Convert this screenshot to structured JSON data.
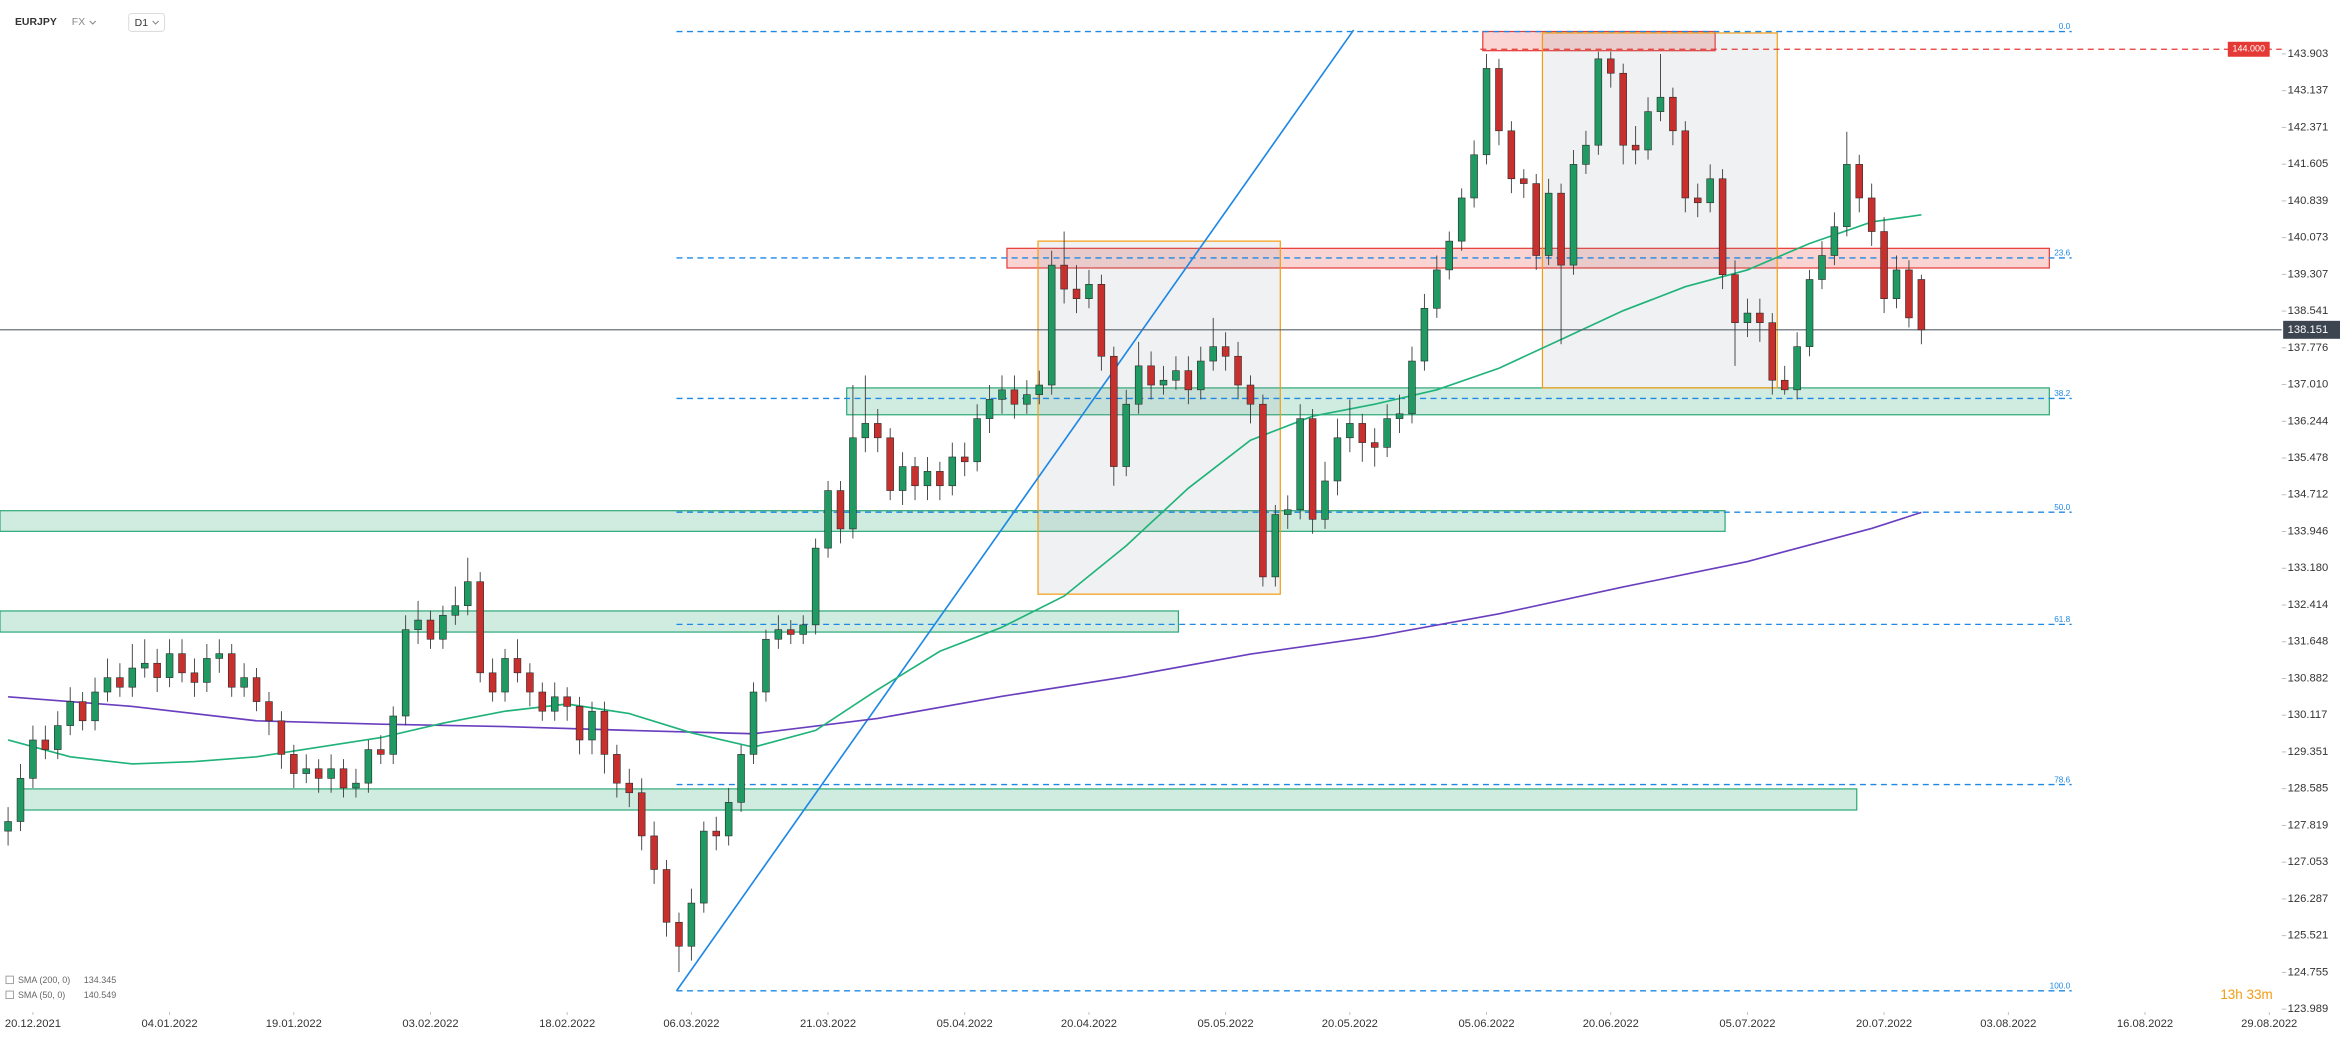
{
  "chart_data": {
    "type": "candlestick",
    "symbol": "EURJPY",
    "market": "FX",
    "timeframe": "D1",
    "x": [
      -2,
      -1,
      0,
      1,
      2,
      3,
      4,
      5,
      6,
      7,
      8,
      9,
      10,
      11,
      12,
      13,
      14,
      15,
      16,
      17,
      18,
      19,
      20,
      21,
      22,
      23,
      24,
      25,
      26,
      27,
      28,
      29,
      30,
      31,
      32,
      33,
      34,
      35,
      36,
      37,
      38,
      39,
      40,
      41,
      42,
      43,
      44,
      45,
      46,
      47,
      48,
      49,
      50,
      51,
      52,
      53,
      54,
      55,
      56,
      57,
      58,
      59,
      60,
      61,
      62,
      63,
      64,
      65,
      66,
      67,
      68,
      69,
      70,
      71,
      72,
      73,
      74,
      75,
      76,
      77,
      78,
      79,
      80,
      81,
      82,
      83,
      84,
      85,
      86,
      87,
      88,
      89,
      90,
      91,
      92,
      93,
      94,
      95,
      96,
      97,
      98,
      99,
      100,
      101,
      102,
      103,
      104,
      105,
      106,
      107,
      108,
      109,
      110,
      111,
      112,
      113,
      114,
      115,
      116,
      117,
      118,
      119,
      120,
      121,
      122,
      123,
      124,
      125,
      126,
      127,
      128,
      129,
      130,
      131,
      132,
      133,
      134,
      135,
      136,
      137,
      138,
      139,
      140,
      141,
      142,
      143,
      144,
      145,
      146,
      147,
      148,
      149,
      150,
      151,
      152
    ],
    "open": [
      127.7,
      127.9,
      128.8,
      129.6,
      129.4,
      129.9,
      130.4,
      130.0,
      130.6,
      130.9,
      130.7,
      131.1,
      131.2,
      130.9,
      131.4,
      131.0,
      130.8,
      131.3,
      131.4,
      130.7,
      130.9,
      130.4,
      130.0,
      129.3,
      128.9,
      129.0,
      128.8,
      129.0,
      128.6,
      128.7,
      129.4,
      129.3,
      130.1,
      131.9,
      132.1,
      131.7,
      132.2,
      132.4,
      132.9,
      131.0,
      130.6,
      131.3,
      131.0,
      130.6,
      130.2,
      130.5,
      130.3,
      129.6,
      130.2,
      129.3,
      128.7,
      128.5,
      127.6,
      126.9,
      125.8,
      125.3,
      126.2,
      127.7,
      127.6,
      128.3,
      129.3,
      130.6,
      131.7,
      131.9,
      131.8,
      132.0,
      133.6,
      134.8,
      134.0,
      135.9,
      136.2,
      135.9,
      134.8,
      135.3,
      134.9,
      135.2,
      134.9,
      135.5,
      135.4,
      136.3,
      136.7,
      136.9,
      136.6,
      136.8,
      137.0,
      139.5,
      139.0,
      138.8,
      139.1,
      137.6,
      135.3,
      136.6,
      137.4,
      137.0,
      137.1,
      137.3,
      136.9,
      137.5,
      137.8,
      137.6,
      137.0,
      136.6,
      133.0,
      134.3,
      134.4,
      136.3,
      134.2,
      135.0,
      135.9,
      136.2,
      135.8,
      135.7,
      136.3,
      136.4,
      137.5,
      138.6,
      139.4,
      140.0,
      140.9,
      141.8,
      143.6,
      142.3,
      141.3,
      141.2,
      139.7,
      141.0,
      139.5,
      141.6,
      142.0,
      143.8,
      143.5,
      142.0,
      141.9,
      142.7,
      143.0,
      142.3,
      140.9,
      140.8,
      141.3,
      139.3,
      138.3,
      138.5,
      138.3,
      137.1,
      136.9,
      137.8,
      139.2,
      139.7,
      140.3,
      141.6,
      140.9,
      140.2,
      138.8,
      139.4,
      139.2
    ],
    "high": [
      128.2,
      129.1,
      129.9,
      129.9,
      130.2,
      130.7,
      130.6,
      130.9,
      131.3,
      131.2,
      131.6,
      131.7,
      131.5,
      131.7,
      131.7,
      131.3,
      131.6,
      131.7,
      131.6,
      131.2,
      131.1,
      130.6,
      130.2,
      129.5,
      129.3,
      129.2,
      129.3,
      129.2,
      129.0,
      129.6,
      129.7,
      130.3,
      132.2,
      132.5,
      132.3,
      132.4,
      132.8,
      133.4,
      133.1,
      131.3,
      131.5,
      131.7,
      131.2,
      130.8,
      130.8,
      130.7,
      130.5,
      130.4,
      130.4,
      129.5,
      129.0,
      128.8,
      127.9,
      127.1,
      126.0,
      126.5,
      127.9,
      128.0,
      128.6,
      129.5,
      130.8,
      131.9,
      132.2,
      132.1,
      132.2,
      133.8,
      135.0,
      135.0,
      137.0,
      137.2,
      136.5,
      136.1,
      135.6,
      135.5,
      135.5,
      135.4,
      135.8,
      135.8,
      136.6,
      137.0,
      137.2,
      137.2,
      137.1,
      137.3,
      139.8,
      140.2,
      139.5,
      139.4,
      139.3,
      137.8,
      136.9,
      137.9,
      137.7,
      137.4,
      137.6,
      137.6,
      137.8,
      138.4,
      138.1,
      137.9,
      137.2,
      136.8,
      134.5,
      134.7,
      136.6,
      136.5,
      135.4,
      136.3,
      136.7,
      136.4,
      136.1,
      136.6,
      136.8,
      137.8,
      138.9,
      139.7,
      140.2,
      141.1,
      142.1,
      143.9,
      143.8,
      142.5,
      141.5,
      141.4,
      141.3,
      141.2,
      141.9,
      142.3,
      143.95,
      143.95,
      143.7,
      142.4,
      143.0,
      143.9,
      143.2,
      142.5,
      141.2,
      141.6,
      141.5,
      139.6,
      138.8,
      138.8,
      138.5,
      137.4,
      138.1,
      139.4,
      140.0,
      140.6,
      142.28,
      141.8,
      141.2,
      140.5,
      139.7,
      139.6,
      139.3
    ],
    "low": [
      127.4,
      127.7,
      128.6,
      129.2,
      129.2,
      129.7,
      129.8,
      129.8,
      130.4,
      130.5,
      130.5,
      130.9,
      130.6,
      130.7,
      130.8,
      130.5,
      130.6,
      131.0,
      130.5,
      130.5,
      130.2,
      129.7,
      129.0,
      128.6,
      128.7,
      128.5,
      128.5,
      128.4,
      128.4,
      128.5,
      129.1,
      129.1,
      129.9,
      131.6,
      131.5,
      131.5,
      132.0,
      132.2,
      130.8,
      130.4,
      130.4,
      130.8,
      130.3,
      130.0,
      130.0,
      130.0,
      129.3,
      129.3,
      128.9,
      128.4,
      128.2,
      127.3,
      126.6,
      125.5,
      124.76,
      125.0,
      126.0,
      127.3,
      127.4,
      128.1,
      129.1,
      130.4,
      131.5,
      131.6,
      131.6,
      131.8,
      133.4,
      133.7,
      133.8,
      135.6,
      135.6,
      134.6,
      134.5,
      134.6,
      134.6,
      134.6,
      134.7,
      135.1,
      135.2,
      136.0,
      136.4,
      136.3,
      136.4,
      136.6,
      136.8,
      138.7,
      138.5,
      138.6,
      137.3,
      134.9,
      135.1,
      136.4,
      136.7,
      136.8,
      136.9,
      136.6,
      136.7,
      137.3,
      137.3,
      136.7,
      136.2,
      132.8,
      132.8,
      134.0,
      134.2,
      133.9,
      134.0,
      134.7,
      135.6,
      135.4,
      135.3,
      135.5,
      136.0,
      136.2,
      137.3,
      138.4,
      139.2,
      139.8,
      140.7,
      141.6,
      142.0,
      141.0,
      140.9,
      139.4,
      139.5,
      137.85,
      139.3,
      141.4,
      141.8,
      143.2,
      141.6,
      141.6,
      141.7,
      142.5,
      142.0,
      140.6,
      140.5,
      140.6,
      139.0,
      137.4,
      138.0,
      137.9,
      136.8,
      136.8,
      136.7,
      137.6,
      139.0,
      139.5,
      140.1,
      140.6,
      139.9,
      138.5,
      138.6,
      138.2,
      137.85
    ],
    "close": [
      127.9,
      128.8,
      129.6,
      129.4,
      129.9,
      130.4,
      130.0,
      130.6,
      130.9,
      130.7,
      131.1,
      131.2,
      130.9,
      131.4,
      131.0,
      130.8,
      131.3,
      131.4,
      130.7,
      130.9,
      130.4,
      130.0,
      129.3,
      128.9,
      129.0,
      128.8,
      129.0,
      128.6,
      128.7,
      129.4,
      129.3,
      130.1,
      131.9,
      132.1,
      131.7,
      132.2,
      132.4,
      132.9,
      131.0,
      130.6,
      131.3,
      131.0,
      130.6,
      130.2,
      130.5,
      130.3,
      129.6,
      130.2,
      129.3,
      128.7,
      128.5,
      127.6,
      126.9,
      125.8,
      125.3,
      126.2,
      127.7,
      127.6,
      128.3,
      129.3,
      130.6,
      131.7,
      131.9,
      131.8,
      132.0,
      133.6,
      134.8,
      134.0,
      135.9,
      136.2,
      135.9,
      134.8,
      135.3,
      134.9,
      135.2,
      134.9,
      135.5,
      135.4,
      136.3,
      136.7,
      136.9,
      136.6,
      136.8,
      137.0,
      139.5,
      139.0,
      138.8,
      139.1,
      137.6,
      135.3,
      136.6,
      137.4,
      137.0,
      137.1,
      137.3,
      136.9,
      137.5,
      137.8,
      137.6,
      137.0,
      136.6,
      133.0,
      134.3,
      134.4,
      136.3,
      134.2,
      135.0,
      135.9,
      136.2,
      135.8,
      135.7,
      136.3,
      136.4,
      137.5,
      138.6,
      139.4,
      140.0,
      140.9,
      141.8,
      143.6,
      142.3,
      141.3,
      141.2,
      139.7,
      141.0,
      139.5,
      141.6,
      142.0,
      143.8,
      143.5,
      142.0,
      141.9,
      142.7,
      143.0,
      142.3,
      140.9,
      140.8,
      141.3,
      139.3,
      138.3,
      138.5,
      138.3,
      137.1,
      136.9,
      137.8,
      139.2,
      139.7,
      140.3,
      141.6,
      140.9,
      140.2,
      138.8,
      139.4,
      138.4,
      138.15
    ],
    "up_color": "#1f9a63",
    "down_color": "#c8302e",
    "xlim": [
      -2.65,
      181
    ],
    "ylim": [
      123.928,
      145.027
    ],
    "xticks": [
      {
        "value": 0,
        "label": "20.12.2021"
      },
      {
        "value": 11,
        "label": "04.01.2022"
      },
      {
        "value": 21,
        "label": "19.01.2022"
      },
      {
        "value": 32,
        "label": "03.02.2022"
      },
      {
        "value": 43,
        "label": "18.02.2022"
      },
      {
        "value": 53,
        "label": "06.03.2022"
      },
      {
        "value": 64,
        "label": "21.03.2022"
      },
      {
        "value": 75,
        "label": "05.04.2022"
      },
      {
        "value": 85,
        "label": "20.04.2022"
      },
      {
        "value": 96,
        "label": "05.05.2022"
      },
      {
        "value": 106,
        "label": "20.05.2022"
      },
      {
        "value": 117,
        "label": "05.06.2022"
      },
      {
        "value": 127,
        "label": "20.06.2022"
      },
      {
        "value": 138,
        "label": "05.07.2022"
      },
      {
        "value": 149,
        "label": "20.07.2022"
      },
      {
        "value": 159,
        "label": "03.08.2022"
      },
      {
        "value": 170,
        "label": "16.08.2022"
      },
      {
        "value": 180,
        "label": "29.08.2022"
      }
    ],
    "yticks": [
      143.903,
      143.137,
      142.371,
      141.605,
      140.839,
      140.073,
      139.307,
      138.541,
      137.776,
      {
        "value": 137.01,
        "label": "137.010"
      },
      136.244,
      135.478,
      134.712,
      133.946,
      {
        "value": 133.18,
        "label": "133.180"
      },
      132.414,
      131.648,
      130.882,
      130.117,
      129.351,
      128.585,
      127.819,
      127.053,
      126.287,
      125.521,
      124.755,
      123.989
    ],
    "grid": false,
    "indicators": [
      {
        "name": "SMA (200, 0)",
        "last": 134.345,
        "color": "#6a3fbf",
        "x": [
          -2,
          8,
          18,
          28,
          38,
          48,
          58,
          68,
          78,
          88,
          98,
          108,
          118,
          128,
          138,
          148,
          152
        ],
        "values": [
          130.5,
          130.3,
          130.0,
          129.93,
          129.88,
          129.8,
          129.73,
          130.05,
          130.51,
          130.92,
          131.39,
          131.76,
          132.23,
          132.79,
          133.32,
          134.01,
          134.345
        ]
      },
      {
        "name": "SMA (50, 0)",
        "last": 140.549,
        "color": "#1fb37a",
        "x": [
          -2,
          3,
          8,
          13,
          18,
          23,
          28,
          33,
          38,
          43,
          48,
          53,
          58,
          63,
          68,
          73,
          78,
          83,
          88,
          93,
          98,
          103,
          108,
          113,
          118,
          123,
          128,
          133,
          138,
          143,
          148,
          152
        ],
        "values": [
          129.6,
          129.25,
          129.1,
          129.15,
          129.25,
          129.45,
          129.65,
          129.95,
          130.2,
          130.35,
          130.15,
          129.75,
          129.45,
          129.8,
          130.65,
          131.45,
          131.95,
          132.6,
          133.65,
          134.85,
          135.85,
          136.35,
          136.6,
          136.9,
          137.35,
          137.95,
          138.55,
          139.05,
          139.4,
          139.95,
          140.4,
          140.549
        ]
      }
    ],
    "fibonacci": {
      "color": "#1e88e5",
      "x": [
        51.8,
        164.1
      ],
      "levels": [
        {
          "label": "0.0",
          "value": 144.37
        },
        {
          "label": "23.6",
          "value": 139.65
        },
        {
          "label": "38.2",
          "value": 136.72
        },
        {
          "label": "50.0",
          "value": 134.35
        },
        {
          "label": "61.8",
          "value": 132.01
        },
        {
          "label": "78.6",
          "value": 128.67
        },
        {
          "label": "100.0",
          "value": 124.37
        }
      ]
    },
    "trendline": {
      "color": "#1e88e5",
      "x": [
        51.8,
        106.3
      ],
      "values": [
        124.37,
        144.4
      ]
    },
    "zones": [
      {
        "color": "#2aa876",
        "x": [
          -2.65,
          136.2
        ],
        "low": 133.95,
        "high": 134.38
      },
      {
        "color": "#2aa876",
        "x": [
          -2.65,
          92.2
        ],
        "low": 131.85,
        "high": 132.29
      },
      {
        "color": "#2aa876",
        "x": [
          -0.85,
          146.8
        ],
        "low": 128.14,
        "high": 128.58
      },
      {
        "color": "#2aa876",
        "x": [
          65.5,
          162.3
        ],
        "low": 136.38,
        "high": 136.94
      },
      {
        "color": "#e53935",
        "x": [
          78.4,
          162.3
        ],
        "low": 139.44,
        "high": 139.85
      },
      {
        "color": "#e53935",
        "x": [
          116.7,
          135.4
        ],
        "low": 143.97,
        "high": 144.37
      },
      {
        "color": "#f39c12",
        "x": [
          80.9,
          100.4
        ],
        "low": 132.64,
        "high": 140.0
      },
      {
        "color": "#f39c12",
        "x": [
          121.5,
          140.4
        ],
        "low": 136.94,
        "high": 144.34
      }
    ],
    "last_price": 138.151,
    "alert": {
      "value": 144,
      "label": "144.000",
      "x": 116.5,
      "color": "#e53935"
    },
    "countdown": "13h 33m"
  }
}
